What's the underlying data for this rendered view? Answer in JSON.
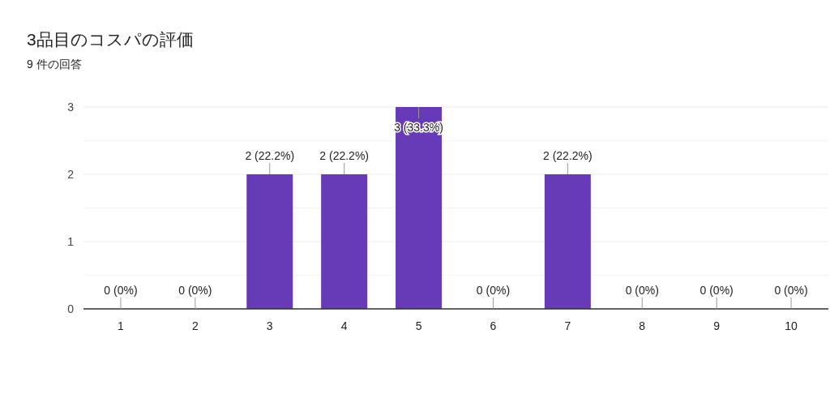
{
  "chart_data": {
    "type": "bar",
    "title": "3品目のコスパの評価",
    "subtitle": "9 件の回答",
    "categories": [
      "1",
      "2",
      "3",
      "4",
      "5",
      "6",
      "7",
      "8",
      "9",
      "10"
    ],
    "values": [
      0,
      0,
      2,
      2,
      3,
      0,
      2,
      0,
      0,
      0
    ],
    "value_labels": [
      "0 (0%)",
      "0 (0%)",
      "2 (22.2%)",
      "2 (22.2%)",
      "3 (33.3%)",
      "0 (0%)",
      "2 (22.2%)",
      "0 (0%)",
      "0 (0%)",
      "0 (0%)"
    ],
    "color": "#673ab7",
    "ylim": [
      0,
      3
    ],
    "yticks": [
      0,
      {
        "value": 0.5,
        "label": null
      },
      1,
      {
        "value": 1.5,
        "label": null
      },
      2,
      {
        "value": 2.5,
        "label": null
      },
      3
    ],
    "grid": "y"
  }
}
